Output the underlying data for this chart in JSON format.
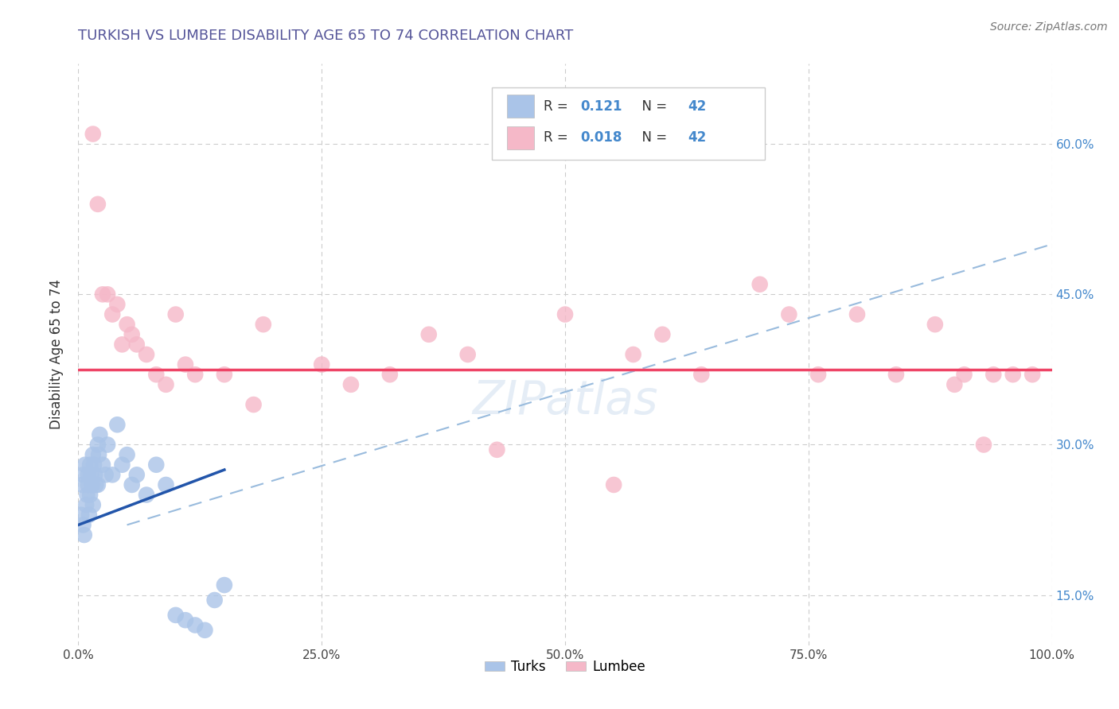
{
  "title": "TURKISH VS LUMBEE DISABILITY AGE 65 TO 74 CORRELATION CHART",
  "source": "Source: ZipAtlas.com",
  "ylabel": "Disability Age 65 to 74",
  "xlim": [
    0.0,
    100.0
  ],
  "ylim": [
    10.0,
    68.0
  ],
  "x_ticks": [
    0.0,
    25.0,
    50.0,
    75.0,
    100.0
  ],
  "x_tick_labels": [
    "0.0%",
    "25.0%",
    "50.0%",
    "75.0%",
    "100.0%"
  ],
  "y_ticks": [
    15.0,
    30.0,
    45.0,
    60.0
  ],
  "y_tick_labels": [
    "15.0%",
    "30.0%",
    "45.0%",
    "60.0%"
  ],
  "background_color": "#ffffff",
  "grid_color": "#cccccc",
  "title_color": "#555599",
  "R_turks": 0.121,
  "N_turks": 42,
  "R_lumbee": 0.018,
  "N_lumbee": 42,
  "turks_color": "#aac4e8",
  "lumbee_color": "#f5b8c8",
  "turks_line_color": "#2255aa",
  "lumbee_line_color": "#ee4466",
  "dashed_line_color": "#99bbdd",
  "legend_label_turks": "Turks",
  "legend_label_lumbee": "Lumbee",
  "turks_x": [
    0.3,
    0.4,
    0.5,
    0.5,
    0.6,
    0.7,
    0.8,
    0.9,
    1.0,
    1.0,
    1.1,
    1.2,
    1.2,
    1.3,
    1.4,
    1.5,
    1.5,
    1.6,
    1.7,
    1.8,
    2.0,
    2.0,
    2.1,
    2.2,
    2.5,
    2.8,
    3.0,
    3.5,
    4.0,
    4.5,
    5.0,
    5.5,
    6.0,
    7.0,
    8.0,
    9.0,
    10.0,
    11.0,
    12.0,
    13.0,
    14.0,
    15.0
  ],
  "turks_y": [
    23.0,
    26.0,
    22.0,
    27.0,
    21.0,
    28.0,
    24.0,
    25.0,
    26.0,
    27.0,
    23.0,
    28.0,
    25.0,
    27.0,
    26.0,
    29.0,
    24.0,
    28.0,
    27.0,
    26.0,
    30.0,
    26.0,
    29.0,
    31.0,
    28.0,
    27.0,
    30.0,
    27.0,
    32.0,
    28.0,
    29.0,
    26.0,
    27.0,
    25.0,
    28.0,
    26.0,
    13.0,
    12.5,
    12.0,
    11.5,
    14.5,
    16.0
  ],
  "lumbee_x": [
    1.5,
    2.0,
    2.5,
    3.0,
    3.5,
    4.0,
    4.5,
    5.0,
    5.5,
    6.0,
    7.0,
    8.0,
    9.0,
    10.0,
    11.0,
    12.0,
    15.0,
    18.0,
    19.0,
    25.0,
    28.0,
    32.0,
    36.0,
    40.0,
    43.0,
    50.0,
    55.0,
    57.0,
    60.0,
    64.0,
    70.0,
    73.0,
    76.0,
    80.0,
    84.0,
    88.0,
    90.0,
    91.0,
    93.0,
    94.0,
    96.0,
    98.0
  ],
  "lumbee_y": [
    61.0,
    54.0,
    45.0,
    45.0,
    43.0,
    44.0,
    40.0,
    42.0,
    41.0,
    40.0,
    39.0,
    37.0,
    36.0,
    43.0,
    38.0,
    37.0,
    37.0,
    34.0,
    42.0,
    38.0,
    36.0,
    37.0,
    41.0,
    39.0,
    29.5,
    43.0,
    26.0,
    39.0,
    41.0,
    37.0,
    46.0,
    43.0,
    37.0,
    43.0,
    37.0,
    42.0,
    36.0,
    37.0,
    30.0,
    37.0,
    37.0,
    37.0
  ],
  "turks_line_x0": 0.0,
  "turks_line_x1": 15.0,
  "turks_line_y0": 22.0,
  "turks_line_y1": 27.5,
  "lumbee_line_y": 37.5,
  "dashed_x0": 5.0,
  "dashed_y0": 22.0,
  "dashed_x1": 100.0,
  "dashed_y1": 50.0
}
